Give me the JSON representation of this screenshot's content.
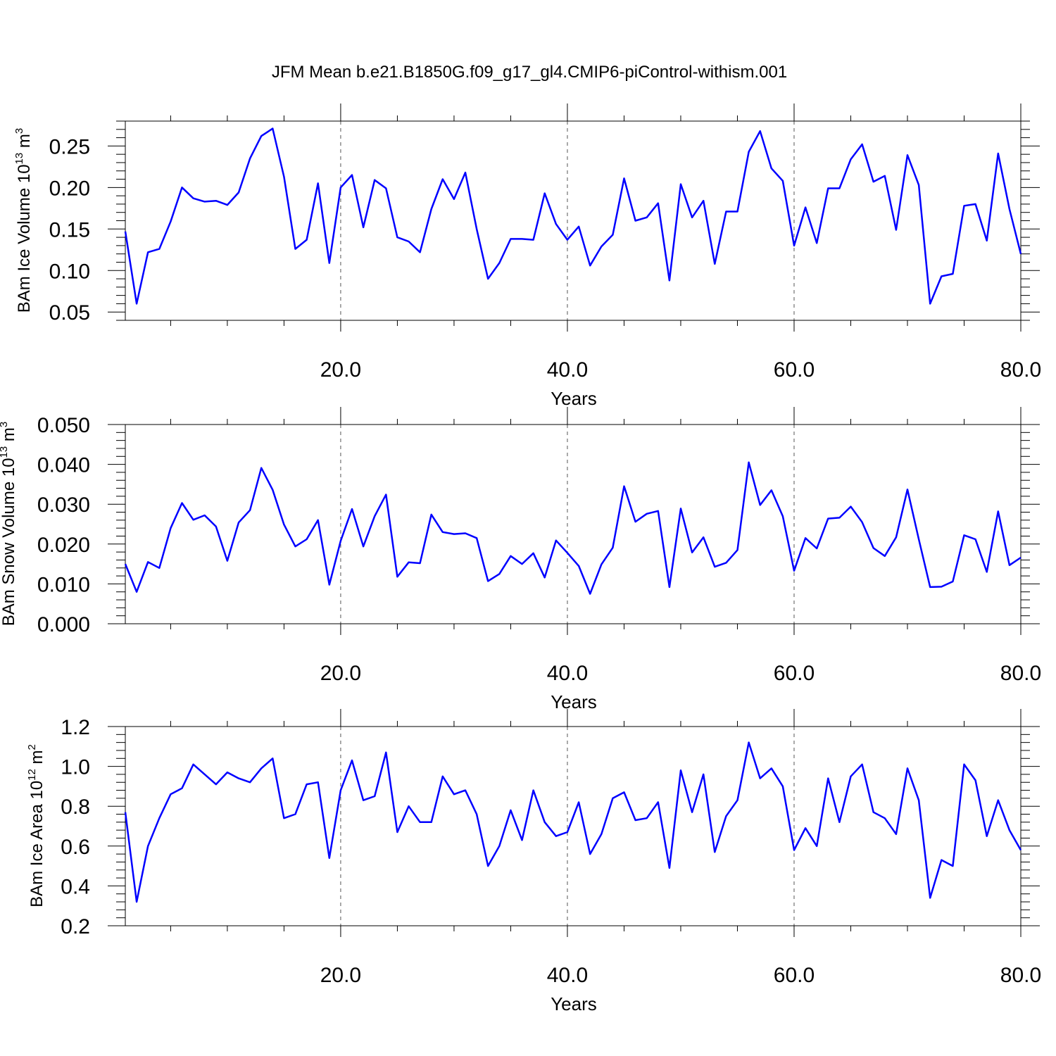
{
  "title": "JFM Mean b.e21.B1850G.f09_g17_gl4.CMIP6-piControl-withism.001",
  "colors": {
    "line": "#0000ff",
    "axis": "#000000",
    "grid": "#555555"
  },
  "chart_data": [
    {
      "type": "line",
      "xlabel": "Years",
      "ylabel": {
        "prefix": "BAm Ice Volume 10",
        "exponent": "13",
        "unit": " m",
        "unit_exponent": "3"
      },
      "xlim": [
        1,
        80
      ],
      "ylim": [
        0.04,
        0.28
      ],
      "xticks": [
        20,
        40,
        60,
        80
      ],
      "xtick_labels": [
        "20.0",
        "40.0",
        "60.0",
        "80.0"
      ],
      "yticks": [
        0.05,
        0.1,
        0.15,
        0.2,
        0.25
      ],
      "ytick_labels": [
        "0.05",
        "0.10",
        "0.15",
        "0.20",
        "0.25"
      ],
      "grid": "vertical dashed at major x ticks",
      "x_start": 1,
      "values": [
        0.147,
        0.06,
        0.122,
        0.126,
        0.159,
        0.2,
        0.187,
        0.183,
        0.184,
        0.179,
        0.194,
        0.235,
        0.262,
        0.271,
        0.213,
        0.126,
        0.137,
        0.205,
        0.109,
        0.2,
        0.215,
        0.152,
        0.209,
        0.199,
        0.14,
        0.135,
        0.122,
        0.174,
        0.21,
        0.186,
        0.218,
        0.15,
        0.09,
        0.109,
        0.138,
        0.138,
        0.137,
        0.193,
        0.156,
        0.137,
        0.153,
        0.106,
        0.129,
        0.143,
        0.211,
        0.16,
        0.164,
        0.181,
        0.088,
        0.204,
        0.164,
        0.184,
        0.108,
        0.171,
        0.171,
        0.243,
        0.268,
        0.223,
        0.208,
        0.13,
        0.176,
        0.133,
        0.199,
        0.199,
        0.234,
        0.252,
        0.207,
        0.214,
        0.149,
        0.239,
        0.203,
        0.06,
        0.093,
        0.096,
        0.178,
        0.18,
        0.136,
        0.241,
        0.174,
        0.12
      ]
    },
    {
      "type": "line",
      "xlabel": "Years",
      "ylabel": {
        "prefix": "BAm Snow Volume 10",
        "exponent": "13",
        "unit": " m",
        "unit_exponent": "3"
      },
      "xlim": [
        1,
        80
      ],
      "ylim": [
        0.0,
        0.05
      ],
      "xticks": [
        20,
        40,
        60,
        80
      ],
      "xtick_labels": [
        "20.0",
        "40.0",
        "60.0",
        "80.0"
      ],
      "yticks": [
        0.0,
        0.01,
        0.02,
        0.03,
        0.04,
        0.05
      ],
      "ytick_labels": [
        "0.000",
        "0.010",
        "0.020",
        "0.030",
        "0.040",
        "0.050"
      ],
      "grid": "vertical dashed at major x ticks",
      "x_start": 1,
      "values": [
        0.015,
        0.008,
        0.0155,
        0.014,
        0.024,
        0.0303,
        0.0261,
        0.0272,
        0.0244,
        0.0158,
        0.0254,
        0.0285,
        0.0391,
        0.0336,
        0.0249,
        0.0194,
        0.0212,
        0.026,
        0.0098,
        0.0208,
        0.0288,
        0.0194,
        0.027,
        0.0324,
        0.0118,
        0.0154,
        0.0152,
        0.0274,
        0.023,
        0.0225,
        0.0227,
        0.0215,
        0.0107,
        0.0125,
        0.017,
        0.015,
        0.0177,
        0.0116,
        0.0209,
        0.0178,
        0.0145,
        0.0075,
        0.0149,
        0.0191,
        0.0345,
        0.0256,
        0.0276,
        0.0283,
        0.0092,
        0.0289,
        0.0179,
        0.0217,
        0.0143,
        0.0153,
        0.0185,
        0.0405,
        0.0298,
        0.0335,
        0.027,
        0.0133,
        0.0215,
        0.0189,
        0.0264,
        0.0266,
        0.0294,
        0.0255,
        0.019,
        0.017,
        0.0217,
        0.0337,
        0.0212,
        0.0092,
        0.0093,
        0.0106,
        0.0222,
        0.0212,
        0.013,
        0.0282,
        0.0147,
        0.0166
      ]
    },
    {
      "type": "line",
      "xlabel": "Years",
      "ylabel": {
        "prefix": "BAm Ice Area 10",
        "exponent": "12",
        "unit": " m",
        "unit_exponent": "2"
      },
      "xlim": [
        1,
        80
      ],
      "ylim": [
        0.2,
        1.2
      ],
      "xticks": [
        20,
        40,
        60,
        80
      ],
      "xtick_labels": [
        "20.0",
        "40.0",
        "60.0",
        "80.0"
      ],
      "yticks": [
        0.2,
        0.4,
        0.6,
        0.8,
        1.0,
        1.2
      ],
      "ytick_labels": [
        "0.2",
        "0.4",
        "0.6",
        "0.8",
        "1.0",
        "1.2"
      ],
      "grid": "vertical dashed at major x ticks",
      "x_start": 1,
      "values": [
        0.77,
        0.32,
        0.6,
        0.74,
        0.86,
        0.89,
        1.01,
        0.96,
        0.91,
        0.97,
        0.94,
        0.92,
        0.99,
        1.04,
        0.74,
        0.76,
        0.91,
        0.92,
        0.54,
        0.88,
        1.03,
        0.83,
        0.85,
        1.07,
        0.67,
        0.8,
        0.72,
        0.72,
        0.95,
        0.86,
        0.88,
        0.76,
        0.5,
        0.6,
        0.78,
        0.63,
        0.88,
        0.72,
        0.65,
        0.67,
        0.82,
        0.56,
        0.66,
        0.84,
        0.87,
        0.73,
        0.74,
        0.82,
        0.49,
        0.98,
        0.77,
        0.96,
        0.57,
        0.75,
        0.83,
        1.12,
        0.94,
        0.99,
        0.9,
        0.58,
        0.69,
        0.6,
        0.94,
        0.72,
        0.95,
        1.01,
        0.77,
        0.74,
        0.66,
        0.99,
        0.83,
        0.34,
        0.53,
        0.5,
        1.01,
        0.93,
        0.65,
        0.83,
        0.68,
        0.58
      ]
    }
  ]
}
